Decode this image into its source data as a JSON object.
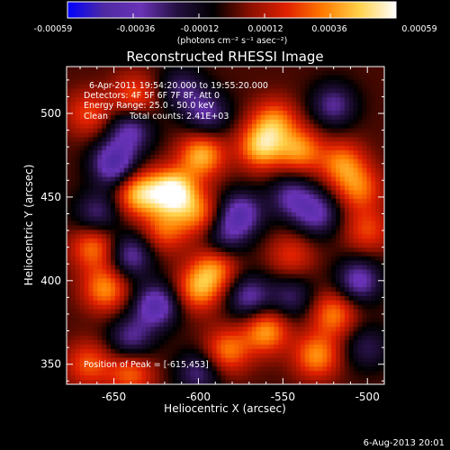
{
  "colorbar": {
    "tick_labels": [
      "-0.00059",
      "-0.00036",
      "-0.00012",
      "0.00012",
      "0.00036",
      "0.00059"
    ],
    "min": -0.00059,
    "max": 0.00059,
    "units_label": "(photons cm⁻² s⁻¹ asec⁻²)",
    "colors": [
      "#0000ff",
      "#4e2aa2",
      "#6a33b8",
      "#241040",
      "#000000",
      "#8a1000",
      "#e02000",
      "#ff7a00",
      "#ffd24a",
      "#ffffff"
    ]
  },
  "chart_data": {
    "type": "heatmap",
    "title": "Reconstructed RHESSI Image",
    "xlabel": "Heliocentric X (arcsec)",
    "ylabel": "Heliocentric Y (arcsec)",
    "xlim": [
      -678,
      -490
    ],
    "ylim": [
      338,
      528
    ],
    "xticks": [
      -650,
      -600,
      -550,
      -500
    ],
    "yticks": [
      350,
      400,
      450,
      500
    ],
    "annotations": [
      "6-Apr-2011 19:54:20.000 to 19:55:20.000",
      "Detectors: 4F 5F 6F 7F 8F, Att 0",
      "Energy Range: 25.0 - 50.0 keV",
      "Clean",
      "Total counts: 2.41E+03"
    ],
    "peak_label": "Position of Peak = [-615,453]",
    "peak": [
      -615,
      453
    ],
    "sources": [
      {
        "x": -615,
        "y": 453,
        "v": 1.0
      },
      {
        "x": -635,
        "y": 452,
        "v": 0.75
      },
      {
        "x": -598,
        "y": 475,
        "v": 0.7
      },
      {
        "x": -563,
        "y": 480,
        "v": 0.72
      },
      {
        "x": -555,
        "y": 495,
        "v": 0.55
      },
      {
        "x": -540,
        "y": 478,
        "v": 0.6
      },
      {
        "x": -515,
        "y": 470,
        "v": 0.55
      },
      {
        "x": -505,
        "y": 455,
        "v": 0.5
      },
      {
        "x": -655,
        "y": 395,
        "v": 0.6
      },
      {
        "x": -662,
        "y": 420,
        "v": 0.55
      },
      {
        "x": -638,
        "y": 510,
        "v": 0.45
      },
      {
        "x": -665,
        "y": 500,
        "v": 0.4
      },
      {
        "x": -600,
        "y": 395,
        "v": 0.6
      },
      {
        "x": -590,
        "y": 408,
        "v": 0.55
      },
      {
        "x": -560,
        "y": 370,
        "v": 0.65
      },
      {
        "x": -583,
        "y": 358,
        "v": 0.55
      },
      {
        "x": -530,
        "y": 355,
        "v": 0.6
      },
      {
        "x": -520,
        "y": 380,
        "v": 0.55
      },
      {
        "x": -500,
        "y": 430,
        "v": 0.4
      },
      {
        "x": -640,
        "y": 345,
        "v": 0.5
      },
      {
        "x": -665,
        "y": 350,
        "v": 0.45
      },
      {
        "x": -545,
        "y": 415,
        "v": 0.35
      },
      {
        "x": -600,
        "y": 440,
        "v": 0.5
      },
      {
        "x": -620,
        "y": 430,
        "v": 0.45
      },
      {
        "x": -650,
        "y": 470,
        "v": -0.75
      },
      {
        "x": -640,
        "y": 490,
        "v": -0.55
      },
      {
        "x": -595,
        "y": 500,
        "v": -0.5
      },
      {
        "x": -610,
        "y": 515,
        "v": -0.4
      },
      {
        "x": -575,
        "y": 440,
        "v": -0.65
      },
      {
        "x": -545,
        "y": 450,
        "v": -0.5
      },
      {
        "x": -530,
        "y": 440,
        "v": -0.55
      },
      {
        "x": -520,
        "y": 505,
        "v": -0.5
      },
      {
        "x": -570,
        "y": 390,
        "v": -0.55
      },
      {
        "x": -625,
        "y": 385,
        "v": -0.7
      },
      {
        "x": -640,
        "y": 415,
        "v": -0.55
      },
      {
        "x": -640,
        "y": 365,
        "v": -0.5
      },
      {
        "x": -600,
        "y": 345,
        "v": -0.45
      },
      {
        "x": -545,
        "y": 390,
        "v": -0.4
      },
      {
        "x": -505,
        "y": 400,
        "v": -0.6
      },
      {
        "x": -500,
        "y": 360,
        "v": -0.35
      },
      {
        "x": -660,
        "y": 440,
        "v": -0.45
      },
      {
        "x": -585,
        "y": 425,
        "v": -0.4
      }
    ]
  },
  "footer": {
    "date": "6-Aug-2013 20:01"
  }
}
